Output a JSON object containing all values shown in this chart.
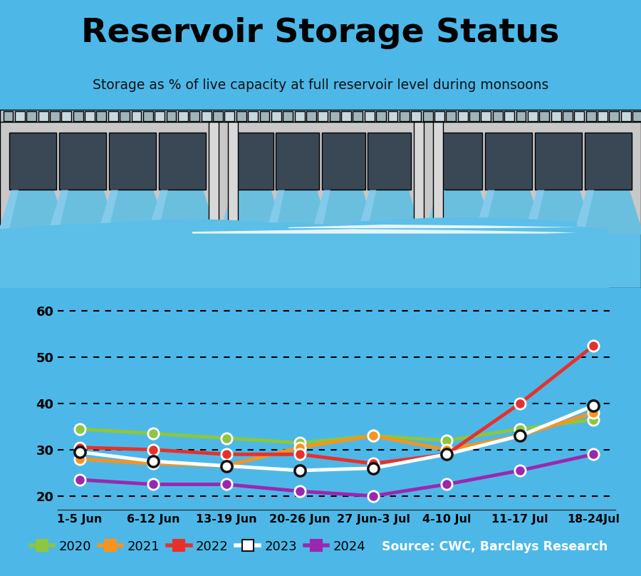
{
  "title": "Reservoir Storage Status",
  "subtitle": "Storage as % of live capacity at full reservoir level during monsoons",
  "source": "Source: CWC, Barclays Research",
  "bg_color": "#4db8e8",
  "x_labels": [
    "1-5 Jun",
    "6-12 Jun",
    "13-19 Jun",
    "20-26 Jun",
    "27 Jun-3 Jul",
    "4-10 Jul",
    "11-17 Jul",
    "18-24Jul"
  ],
  "series": [
    {
      "label": "2020",
      "color": "#8dc63f",
      "marker_edge": "white",
      "values": [
        34.5,
        33.5,
        32.5,
        31.5,
        33.0,
        32.0,
        34.5,
        36.5
      ]
    },
    {
      "label": "2021",
      "color": "#f7941d",
      "marker_edge": "white",
      "values": [
        28.0,
        27.0,
        26.5,
        30.5,
        33.0,
        30.0,
        33.0,
        38.0
      ]
    },
    {
      "label": "2022",
      "color": "#e8302a",
      "marker_edge": "white",
      "values": [
        30.5,
        30.0,
        29.0,
        29.0,
        27.0,
        29.0,
        40.0,
        52.5
      ]
    },
    {
      "label": "2023",
      "color": "#ffffff",
      "marker_edge": "#111111",
      "values": [
        29.5,
        27.5,
        26.5,
        25.5,
        26.0,
        29.0,
        33.0,
        39.5
      ]
    },
    {
      "label": "2024",
      "color": "#9b27af",
      "marker_edge": "white",
      "values": [
        23.5,
        22.5,
        22.5,
        21.0,
        20.0,
        22.5,
        25.5,
        29.0
      ]
    }
  ],
  "ylim": [
    17,
    65
  ],
  "yticks": [
    20,
    30,
    40,
    50,
    60
  ],
  "line_width": 3.5,
  "marker_size": 11,
  "legend_colors": [
    "#8dc63f",
    "#f7941d",
    "#e8302a",
    "#ffffff",
    "#9b27af"
  ],
  "legend_labels": [
    "2020",
    "2021",
    "2022",
    "2023",
    "2024"
  ],
  "dam_gray": "#c8c8c8",
  "dam_gate_color": "#3a4855",
  "dam_water_color": "#6bbfde",
  "dam_divider_color": "#d8d8d8",
  "water_color": "#4db8e8",
  "wave_color": "#ffffff"
}
